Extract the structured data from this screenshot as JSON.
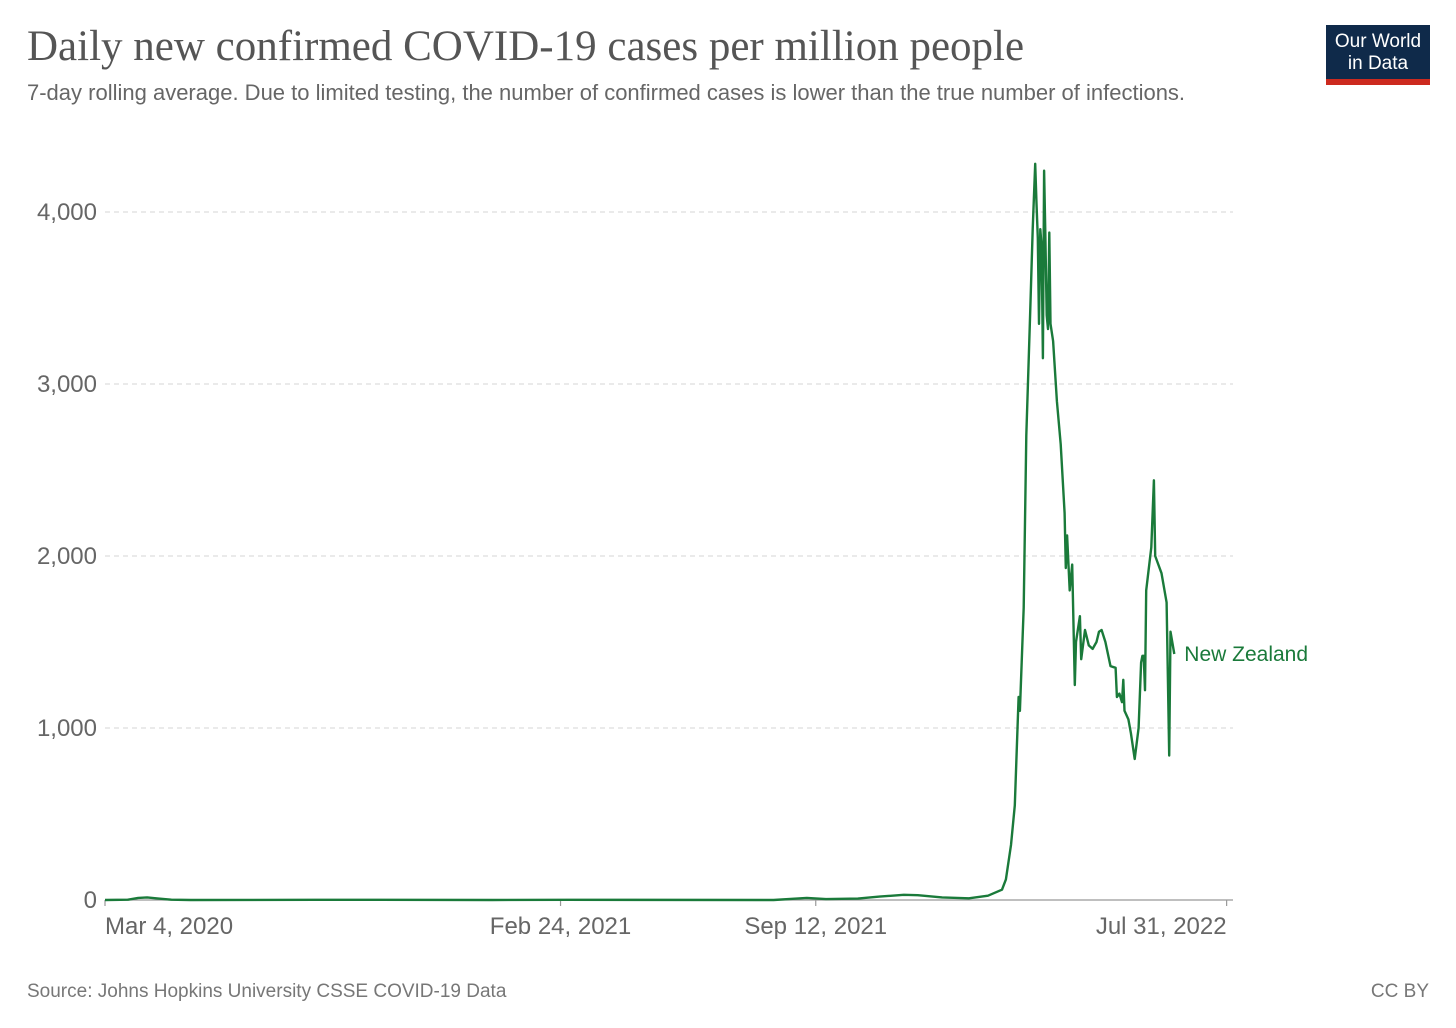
{
  "title": "Daily new confirmed COVID-19 cases per million people",
  "subtitle": "7-day rolling average. Due to limited testing, the number of confirmed cases is lower than the true number of infections.",
  "logo": {
    "line1": "Our World",
    "line2": "in Data"
  },
  "source": "Source: Johns Hopkins University CSSE COVID-19 Data",
  "license": "CC BY",
  "colors": {
    "series": "#1a7a3a",
    "grid": "#dddddd",
    "axis": "#999999",
    "text": "#666666",
    "logo_bg": "#0f2a4a",
    "logo_accent": "#cc2a1f"
  },
  "chart_data": {
    "type": "line",
    "title": "Daily new confirmed COVID-19 cases per million people",
    "xlabel": "",
    "ylabel": "",
    "x_range": [
      "2020-03-04",
      "2022-08-05"
    ],
    "ylim": [
      0,
      4300
    ],
    "y_ticks": [
      {
        "value": 0,
        "label": "0"
      },
      {
        "value": 1000,
        "label": "1,000"
      },
      {
        "value": 2000,
        "label": "2,000"
      },
      {
        "value": 3000,
        "label": "3,000"
      },
      {
        "value": 4000,
        "label": "4,000"
      }
    ],
    "x_ticks": [
      {
        "date": "2020-03-04",
        "label": "Mar 4, 2020",
        "anchor": "start"
      },
      {
        "date": "2021-02-24",
        "label": "Feb 24, 2021",
        "anchor": "middle"
      },
      {
        "date": "2021-09-12",
        "label": "Sep 12, 2021",
        "anchor": "middle"
      },
      {
        "date": "2022-07-31",
        "label": "Jul 31, 2022",
        "anchor": "end"
      }
    ],
    "series": [
      {
        "name": "New Zealand",
        "points": [
          [
            "2020-03-04",
            0
          ],
          [
            "2020-03-22",
            2
          ],
          [
            "2020-03-30",
            12
          ],
          [
            "2020-04-06",
            15
          ],
          [
            "2020-04-15",
            8
          ],
          [
            "2020-04-25",
            2
          ],
          [
            "2020-05-10",
            0
          ],
          [
            "2020-08-15",
            1
          ],
          [
            "2020-09-10",
            1
          ],
          [
            "2021-01-01",
            0
          ],
          [
            "2021-03-01",
            1
          ],
          [
            "2021-08-10",
            0
          ],
          [
            "2021-08-28",
            8
          ],
          [
            "2021-09-05",
            12
          ],
          [
            "2021-09-20",
            5
          ],
          [
            "2021-10-15",
            8
          ],
          [
            "2021-11-01",
            20
          ],
          [
            "2021-11-20",
            30
          ],
          [
            "2021-12-01",
            28
          ],
          [
            "2021-12-20",
            15
          ],
          [
            "2022-01-10",
            10
          ],
          [
            "2022-01-25",
            25
          ],
          [
            "2022-02-05",
            60
          ],
          [
            "2022-02-08",
            120
          ],
          [
            "2022-02-12",
            320
          ],
          [
            "2022-02-15",
            550
          ],
          [
            "2022-02-18",
            1180
          ],
          [
            "2022-02-19",
            1100
          ],
          [
            "2022-02-22",
            1700
          ],
          [
            "2022-02-24",
            2700
          ],
          [
            "2022-02-27",
            3400
          ],
          [
            "2022-03-01",
            3900
          ],
          [
            "2022-03-03",
            4280
          ],
          [
            "2022-03-04",
            4050
          ],
          [
            "2022-03-05",
            3850
          ],
          [
            "2022-03-06",
            3350
          ],
          [
            "2022-03-07",
            3900
          ],
          [
            "2022-03-08",
            3800
          ],
          [
            "2022-03-09",
            3150
          ],
          [
            "2022-03-10",
            4240
          ],
          [
            "2022-03-11",
            3850
          ],
          [
            "2022-03-12",
            3400
          ],
          [
            "2022-03-13",
            3320
          ],
          [
            "2022-03-14",
            3880
          ],
          [
            "2022-03-15",
            3350
          ],
          [
            "2022-03-17",
            3250
          ],
          [
            "2022-03-20",
            2900
          ],
          [
            "2022-03-23",
            2650
          ],
          [
            "2022-03-26",
            2250
          ],
          [
            "2022-03-27",
            1930
          ],
          [
            "2022-03-28",
            2120
          ],
          [
            "2022-03-30",
            1800
          ],
          [
            "2022-04-01",
            1950
          ],
          [
            "2022-04-02",
            1600
          ],
          [
            "2022-04-03",
            1250
          ],
          [
            "2022-04-04",
            1500
          ],
          [
            "2022-04-07",
            1650
          ],
          [
            "2022-04-08",
            1400
          ],
          [
            "2022-04-11",
            1570
          ],
          [
            "2022-04-14",
            1480
          ],
          [
            "2022-04-17",
            1460
          ],
          [
            "2022-04-20",
            1500
          ],
          [
            "2022-04-22",
            1560
          ],
          [
            "2022-04-24",
            1570
          ],
          [
            "2022-04-27",
            1500
          ],
          [
            "2022-05-01",
            1360
          ],
          [
            "2022-05-05",
            1350
          ],
          [
            "2022-05-06",
            1180
          ],
          [
            "2022-05-08",
            1200
          ],
          [
            "2022-05-10",
            1150
          ],
          [
            "2022-05-11",
            1280
          ],
          [
            "2022-05-12",
            1100
          ],
          [
            "2022-05-15",
            1050
          ],
          [
            "2022-05-17",
            970
          ],
          [
            "2022-05-20",
            820
          ],
          [
            "2022-05-23",
            1000
          ],
          [
            "2022-05-25",
            1380
          ],
          [
            "2022-05-26",
            1420
          ],
          [
            "2022-05-27",
            1420
          ],
          [
            "2022-05-28",
            1220
          ],
          [
            "2022-05-29",
            1800
          ],
          [
            "2022-06-02",
            2050
          ],
          [
            "2022-06-04",
            2440
          ],
          [
            "2022-06-05",
            2000
          ],
          [
            "2022-06-10",
            1900
          ],
          [
            "2022-06-14",
            1730
          ],
          [
            "2022-06-16",
            840
          ],
          [
            "2022-06-17",
            1560
          ],
          [
            "2022-06-20",
            1430
          ]
        ]
      }
    ]
  }
}
